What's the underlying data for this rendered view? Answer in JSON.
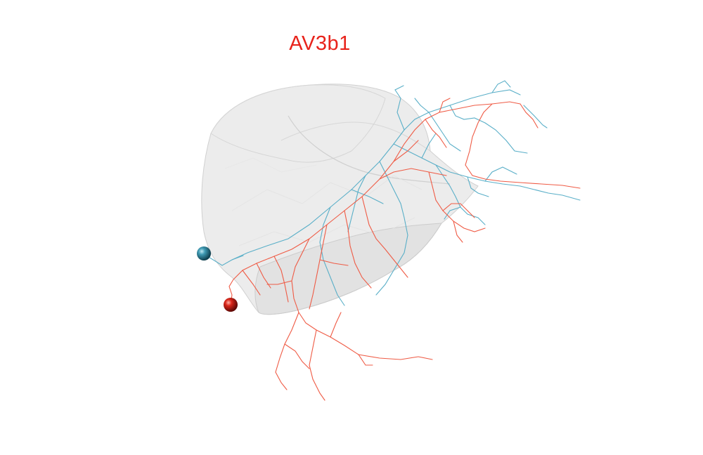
{
  "title": "AV3b1",
  "colors": {
    "title": "#e8231b",
    "neuron_a": "#5aafc8",
    "neuron_b": "#ef5b45",
    "soma_a": "#2a7d96",
    "soma_b": "#c8190f",
    "mesh_fill": "#d9d9d9",
    "mesh_edge": "#c9c9c9"
  },
  "neurons": [
    {
      "name_icon": "neuron-a-skeleton",
      "color_key": "neuron_a"
    },
    {
      "name_icon": "neuron-b-skeleton",
      "color_key": "neuron_b"
    }
  ]
}
